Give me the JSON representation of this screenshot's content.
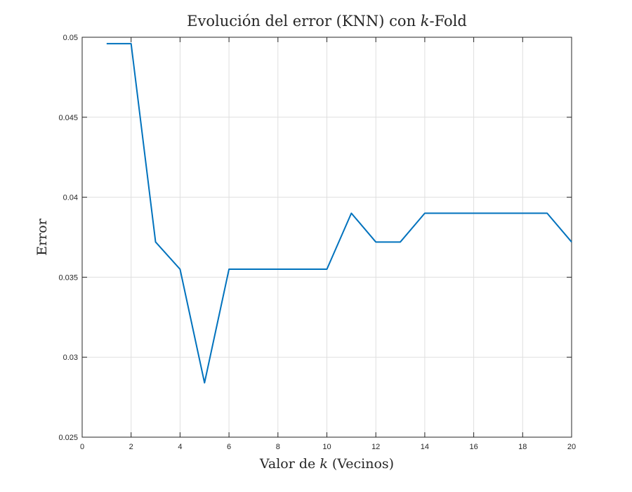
{
  "chart_data": {
    "type": "line",
    "title": "Evolución del error (KNN) con k-Fold",
    "title_parts": {
      "before": "Evolución del error (KNN) con ",
      "italic": "k",
      "after": "-Fold"
    },
    "xlabel": "Valor de k (Vecinos)",
    "xlabel_parts": {
      "before": "Valor de ",
      "italic": "k",
      "after": " (Vecinos)"
    },
    "ylabel": "Error",
    "xlim": [
      0,
      20
    ],
    "ylim": [
      0.025,
      0.05
    ],
    "xticks": [
      0,
      2,
      4,
      6,
      8,
      10,
      12,
      14,
      16,
      18,
      20
    ],
    "yticks": [
      0.025,
      0.03,
      0.035,
      0.04,
      0.045,
      0.05
    ],
    "ytick_labels": [
      "0.025",
      "0.03",
      "0.035",
      "0.04",
      "0.045",
      "0.05"
    ],
    "grid": true,
    "color": "#0072BD",
    "series": [
      {
        "x": [
          1,
          2,
          3,
          4,
          5,
          6,
          7,
          8,
          9,
          10,
          11,
          12,
          13,
          14,
          15,
          16,
          17,
          18,
          19,
          20
        ],
        "y": [
          0.0496,
          0.0496,
          0.0372,
          0.0355,
          0.0284,
          0.0355,
          0.0355,
          0.0355,
          0.0355,
          0.0355,
          0.039,
          0.0372,
          0.0372,
          0.039,
          0.039,
          0.039,
          0.039,
          0.039,
          0.039,
          0.0372
        ]
      }
    ]
  }
}
